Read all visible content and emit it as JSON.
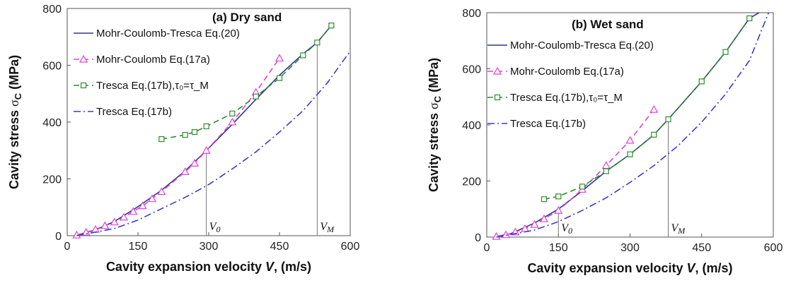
{
  "chart_data": [
    {
      "type": "line",
      "title": "(a) Dry sand",
      "xlabel_text": "Cavity expansion velocity ",
      "xlabel_var": "V",
      "xlabel_unit": ", (m/s)",
      "ylabel_text": "Cavity stress ",
      "ylabel_sym": "σ",
      "ylabel_sub": "C",
      "ylabel_unit": " (MPa)",
      "xlim": [
        0,
        600
      ],
      "ylim": [
        0,
        800
      ],
      "xticks": [
        "0",
        "150",
        "300",
        "450",
        "600"
      ],
      "yticks": [
        "0",
        "200",
        "400",
        "600",
        "800"
      ],
      "legend_position": "top-left",
      "series": [
        {
          "name": "Mohr-Coulomb-Tresca  Eq.(20)",
          "color": "#2e3a8c",
          "dash": "solid",
          "marker": "none",
          "x": [
            20,
            60,
            100,
            150,
            200,
            250,
            295,
            350,
            400,
            450,
            500,
            530,
            560
          ],
          "y": [
            2,
            20,
            50,
            102,
            160,
            228,
            300,
            392,
            480,
            565,
            640,
            680,
            740
          ]
        },
        {
          "name": "Mohr-Coulomb  Eq.(17a)",
          "color": "#e040d8",
          "dash": "dash",
          "marker": "triangle",
          "x": [
            20,
            40,
            60,
            80,
            100,
            120,
            140,
            160,
            180,
            200,
            250,
            270,
            295,
            350,
            400,
            450
          ],
          "y": [
            2,
            12,
            22,
            35,
            48,
            65,
            85,
            105,
            130,
            155,
            225,
            255,
            300,
            400,
            505,
            625
          ]
        },
        {
          "name": "Tresca  Eq.(17b),τ₀=τ_M",
          "color": "#2e8b2e",
          "dash": "dash",
          "marker": "square",
          "x": [
            200,
            250,
            270,
            295,
            350,
            400,
            450,
            500,
            530,
            560
          ],
          "y": [
            340,
            355,
            365,
            385,
            430,
            490,
            555,
            635,
            680,
            740
          ]
        },
        {
          "name": "Tresca  Eq.(17b)",
          "color": "#3b3bcc",
          "dash": "dashdot",
          "marker": "none",
          "x": [
            20,
            100,
            150,
            200,
            250,
            300,
            350,
            400,
            450,
            500,
            550,
            600
          ],
          "y": [
            0,
            25,
            55,
            95,
            135,
            180,
            235,
            295,
            365,
            440,
            535,
            650
          ]
        }
      ],
      "annotations": [
        {
          "label": "V",
          "sub": "0",
          "x": 295,
          "y": 300
        },
        {
          "label": "V",
          "sub": "M",
          "x": 530,
          "y": 680
        }
      ]
    },
    {
      "type": "line",
      "title": "(b) Wet sand",
      "xlabel_text": "Cavity expansion velocity ",
      "xlabel_var": "V",
      "xlabel_unit": ", (m/s)",
      "ylabel_text": "Cavity stress ",
      "ylabel_sym": "σ",
      "ylabel_sub": "C",
      "ylabel_unit": " (MPa)",
      "xlim": [
        0,
        600
      ],
      "ylim": [
        0,
        800
      ],
      "xticks": [
        "0",
        "150",
        "300",
        "450",
        "600"
      ],
      "yticks": [
        "0",
        "200",
        "400",
        "600",
        "800"
      ],
      "legend_position": "top-left",
      "series": [
        {
          "name": "Mohr-Coulomb-Tresca  Eq.(20)",
          "color": "#2e3a8c",
          "dash": "solid",
          "marker": "none",
          "x": [
            20,
            50,
            100,
            150,
            200,
            250,
            300,
            350,
            380,
            450,
            500,
            550,
            570
          ],
          "y": [
            2,
            12,
            50,
            100,
            165,
            235,
            295,
            365,
            420,
            555,
            660,
            780,
            800
          ]
        },
        {
          "name": "Mohr-Coulomb  Eq.(17a)",
          "color": "#e040d8",
          "dash": "dash",
          "marker": "triangle",
          "x": [
            20,
            40,
            60,
            80,
            100,
            120,
            150,
            200,
            250,
            300,
            350
          ],
          "y": [
            2,
            8,
            18,
            30,
            45,
            65,
            95,
            170,
            255,
            345,
            455
          ]
        },
        {
          "name": "Tresca  Eq.(17b),τ₀=τ_M",
          "color": "#2e8b2e",
          "dash": "dash",
          "marker": "square",
          "x": [
            120,
            150,
            200,
            250,
            300,
            350,
            380,
            450,
            500,
            550
          ],
          "y": [
            135,
            145,
            180,
            235,
            295,
            365,
            420,
            555,
            660,
            780
          ]
        },
        {
          "name": "Tresca  Eq.(17b)",
          "color": "#3b3bcc",
          "dash": "dashdot",
          "marker": "none",
          "x": [
            20,
            100,
            150,
            200,
            250,
            300,
            350,
            400,
            450,
            500,
            550,
            590
          ],
          "y": [
            0,
            25,
            55,
            95,
            140,
            195,
            255,
            325,
            410,
            510,
            630,
            800
          ]
        }
      ],
      "annotations": [
        {
          "label": "V",
          "sub": "0",
          "x": 150,
          "y": 95
        },
        {
          "label": "V",
          "sub": "M",
          "x": 380,
          "y": 420
        }
      ]
    }
  ]
}
